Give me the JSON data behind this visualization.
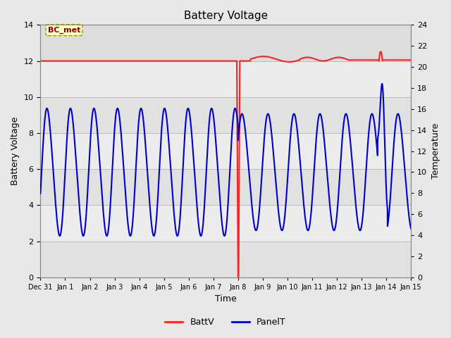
{
  "title": "Battery Voltage",
  "xlabel": "Time",
  "ylabel_left": "Battery Voltage",
  "ylabel_right": "Temperature",
  "legend_entries": [
    "BattV",
    "PanelT"
  ],
  "batt_color": "#FF2020",
  "panel_color": "#0000CC",
  "bg_color": "#E8E8E8",
  "plot_bg_light": "#F0F0F0",
  "plot_bg_dark": "#D8D8D8",
  "grid_color": "#D0D0D0",
  "ylim_left": [
    0,
    14
  ],
  "ylim_right": [
    0,
    24
  ],
  "yticks_left": [
    0,
    2,
    4,
    6,
    8,
    10,
    12,
    14
  ],
  "yticks_right": [
    0,
    2,
    4,
    6,
    8,
    10,
    12,
    14,
    16,
    18,
    20,
    22,
    24
  ],
  "annotation_text": "BC_met",
  "figsize": [
    6.4,
    4.8
  ],
  "dpi": 100
}
